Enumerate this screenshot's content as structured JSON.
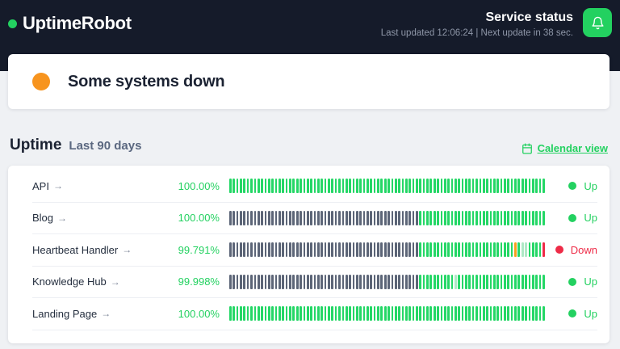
{
  "header": {
    "logo_text": "UptimeRobot",
    "title": "Service status",
    "subtitle": "Last updated 12:06:24 | Next update in 38 sec.",
    "bell_icon": "bell-icon"
  },
  "status_banner": {
    "message": "Some systems down"
  },
  "uptime_section": {
    "title": "Uptime",
    "subtitle": "Last 90 days",
    "calendar_link_label": "Calendar view",
    "calendar_icon": "calendar-icon"
  },
  "colors": {
    "header_bg": "#151b2a",
    "page_bg": "#eff1f4",
    "brand_green": "#23d160",
    "warning_orange": "#f7941e",
    "down_red": "#ee2b47",
    "bar": {
      "up": "#24d766",
      "nodata": "#5c6577",
      "partial": "#aee9c6",
      "degraded": "#f5a01d",
      "down": "#ee2b47"
    },
    "status_text": {
      "up": "#23d160",
      "down": "#ee2b47"
    }
  },
  "monitors": [
    {
      "name": "API",
      "arrow": "→",
      "uptime": "100.00%",
      "status_label": "Up",
      "status_type": "up",
      "bars": [
        {
          "s": "up",
          "n": 90
        }
      ]
    },
    {
      "name": "Blog",
      "arrow": "→",
      "uptime": "100.00%",
      "status_label": "Up",
      "status_type": "up",
      "bars": [
        {
          "s": "nodata",
          "n": 54
        },
        {
          "s": "up",
          "n": 36
        }
      ]
    },
    {
      "name": "Heartbeat Handler",
      "arrow": "→",
      "uptime": "99.791%",
      "status_label": "Down",
      "status_type": "down",
      "bars": [
        {
          "s": "nodata",
          "n": 54
        },
        {
          "s": "up",
          "n": 27
        },
        {
          "s": "degraded",
          "n": 1
        },
        {
          "s": "up",
          "n": 1
        },
        {
          "s": "partial",
          "n": 2
        },
        {
          "s": "up",
          "n": 4
        },
        {
          "s": "down",
          "n": 1
        }
      ]
    },
    {
      "name": "Knowledge Hub",
      "arrow": "→",
      "uptime": "99.998%",
      "status_label": "Up",
      "status_type": "up",
      "bars": [
        {
          "s": "nodata",
          "n": 54
        },
        {
          "s": "up",
          "n": 10
        },
        {
          "s": "partial",
          "n": 1
        },
        {
          "s": "up",
          "n": 25
        }
      ]
    },
    {
      "name": "Landing Page",
      "arrow": "→",
      "uptime": "100.00%",
      "status_label": "Up",
      "status_type": "up",
      "bars": [
        {
          "s": "up",
          "n": 90
        }
      ]
    }
  ]
}
